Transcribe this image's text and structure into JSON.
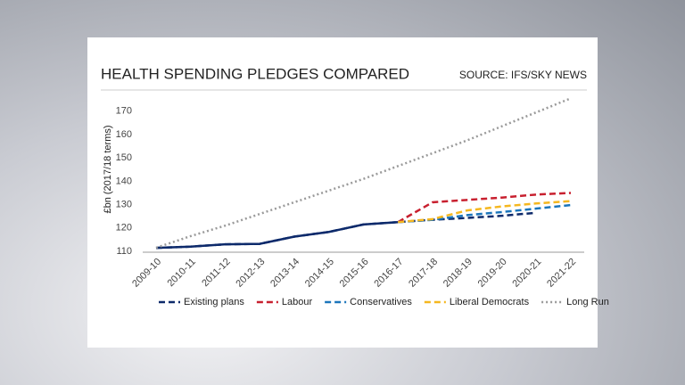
{
  "chart_data": {
    "type": "line",
    "title": "HEALTH SPENDING PLEDGES COMPARED",
    "source": "SOURCE: IFS/SKY NEWS",
    "y_label": "£bn (2017/18 terms)",
    "categories": [
      "2009-10",
      "2010-11",
      "2011-12",
      "2012-13",
      "2013-14",
      "2014-15",
      "2015-16",
      "2016-17",
      "2017-18",
      "2018-19",
      "2019-20",
      "2020-21",
      "2021-22"
    ],
    "series": [
      {
        "name": "Existing plans",
        "color": "#0d2a6b",
        "style": "dashed",
        "values": [
          111.5,
          112,
          113,
          113.2,
          116.3,
          118.3,
          121.5,
          122.5,
          123.5,
          124.3,
          125.2,
          126.5,
          null
        ]
      },
      {
        "name": "Labour",
        "color": "#c8202f",
        "style": "dashed",
        "values": [
          null,
          null,
          null,
          null,
          null,
          null,
          null,
          122.5,
          131,
          132,
          133,
          134.3,
          135
        ]
      },
      {
        "name": "Conservatives",
        "color": "#1b75bb",
        "style": "dashed",
        "values": [
          null,
          null,
          null,
          null,
          null,
          null,
          null,
          122.5,
          123.5,
          125.5,
          126.8,
          128.3,
          129.8
        ]
      },
      {
        "name": "Liberal Democrats",
        "color": "#f5b71f",
        "style": "dashed",
        "values": [
          null,
          null,
          null,
          null,
          null,
          null,
          null,
          122.5,
          123.8,
          127.5,
          129.2,
          130.5,
          131.5
        ]
      },
      {
        "name": "Long Run",
        "color": "#9a9a9a",
        "style": "dotted",
        "values": [
          111.5,
          116.5,
          121,
          126,
          131,
          136,
          141,
          146.5,
          152,
          157.5,
          163.5,
          169.5,
          175.5
        ]
      }
    ],
    "ylim": [
      110,
      176
    ],
    "yticks": [
      110,
      120,
      130,
      140,
      150,
      160,
      170
    ]
  }
}
